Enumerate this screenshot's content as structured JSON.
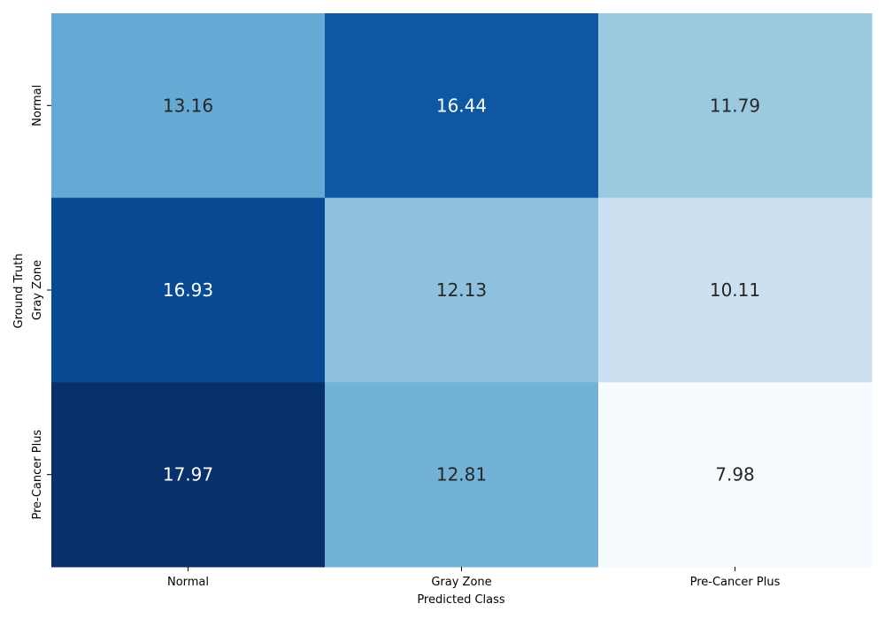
{
  "chart_data": {
    "type": "heatmap",
    "xlabel": "Predicted Class",
    "ylabel": "Ground Truth",
    "x_categories": [
      "Normal",
      "Gray Zone",
      "Pre-Cancer Plus"
    ],
    "y_categories": [
      "Normal",
      "Gray Zone",
      "Pre-Cancer Plus"
    ],
    "values": [
      [
        13.16,
        16.44,
        11.79
      ],
      [
        16.93,
        12.13,
        10.11
      ],
      [
        17.97,
        12.81,
        7.98
      ]
    ],
    "value_labels": [
      [
        "13.16",
        "16.44",
        "11.79"
      ],
      [
        "16.93",
        "12.13",
        "10.11"
      ],
      [
        "17.97",
        "12.81",
        "7.98"
      ]
    ],
    "colormap": "Blues",
    "colorbar": false
  },
  "colors": {
    "light_text": "#ffffff",
    "dark_text": "#262626",
    "tick_color": "#000000"
  }
}
